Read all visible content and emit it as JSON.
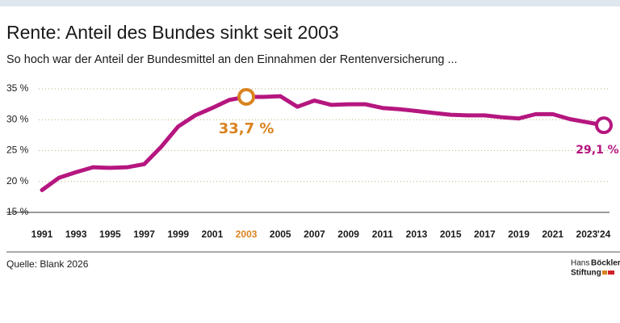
{
  "chart_data": {
    "type": "line",
    "title": "Rente: Anteil des Bundes sinkt seit 2003",
    "subtitle": "So hoch war der Anteil der Bundesmittel an den Einnahmen der Rentenversicherung ...",
    "categories": [
      "1991",
      null,
      "1993",
      null,
      "1995",
      null,
      "1997",
      null,
      "1999",
      null,
      "2001",
      null,
      "2003",
      null,
      "2005",
      null,
      "2007",
      null,
      "2009",
      null,
      "2011",
      null,
      "2013",
      null,
      "2015",
      null,
      "2017",
      null,
      "2019",
      null,
      "2021",
      null,
      "2023",
      "’24"
    ],
    "values": [
      18.6,
      20.6,
      21.5,
      22.3,
      22.2,
      22.3,
      22.8,
      25.6,
      28.9,
      30.7,
      31.9,
      33.2,
      33.7,
      33.7,
      33.8,
      32.1,
      33.1,
      32.4,
      32.5,
      32.5,
      31.9,
      31.7,
      31.4,
      31.1,
      30.8,
      30.7,
      30.7,
      30.4,
      30.2,
      30.9,
      30.9,
      30.1,
      29.6,
      29.1
    ],
    "value_labels": [
      null,
      null,
      null,
      null,
      null,
      null,
      null,
      null,
      null,
      null,
      null,
      null,
      "33,7 %",
      null,
      null,
      null,
      null,
      null,
      null,
      null,
      null,
      null,
      null,
      null,
      null,
      null,
      null,
      null,
      null,
      null,
      null,
      null,
      null,
      "29,1 %"
    ],
    "color": "#b5167f",
    "highlight_color": "#d9831f",
    "highlight_index": 12,
    "ylim": [
      15,
      35
    ],
    "yticks": [
      {
        "value": 15,
        "label": "15 %"
      },
      {
        "value": 20,
        "label": "20 %"
      },
      {
        "value": 25,
        "label": "25 %"
      },
      {
        "value": 30,
        "label": "30 %"
      },
      {
        "value": 35,
        "label": "35 %"
      }
    ],
    "grid": true,
    "source": "Quelle: Blank 2026",
    "logo": {
      "line1": "Hans",
      "line1b": "Böckler",
      "line2": "Stiftung"
    }
  }
}
